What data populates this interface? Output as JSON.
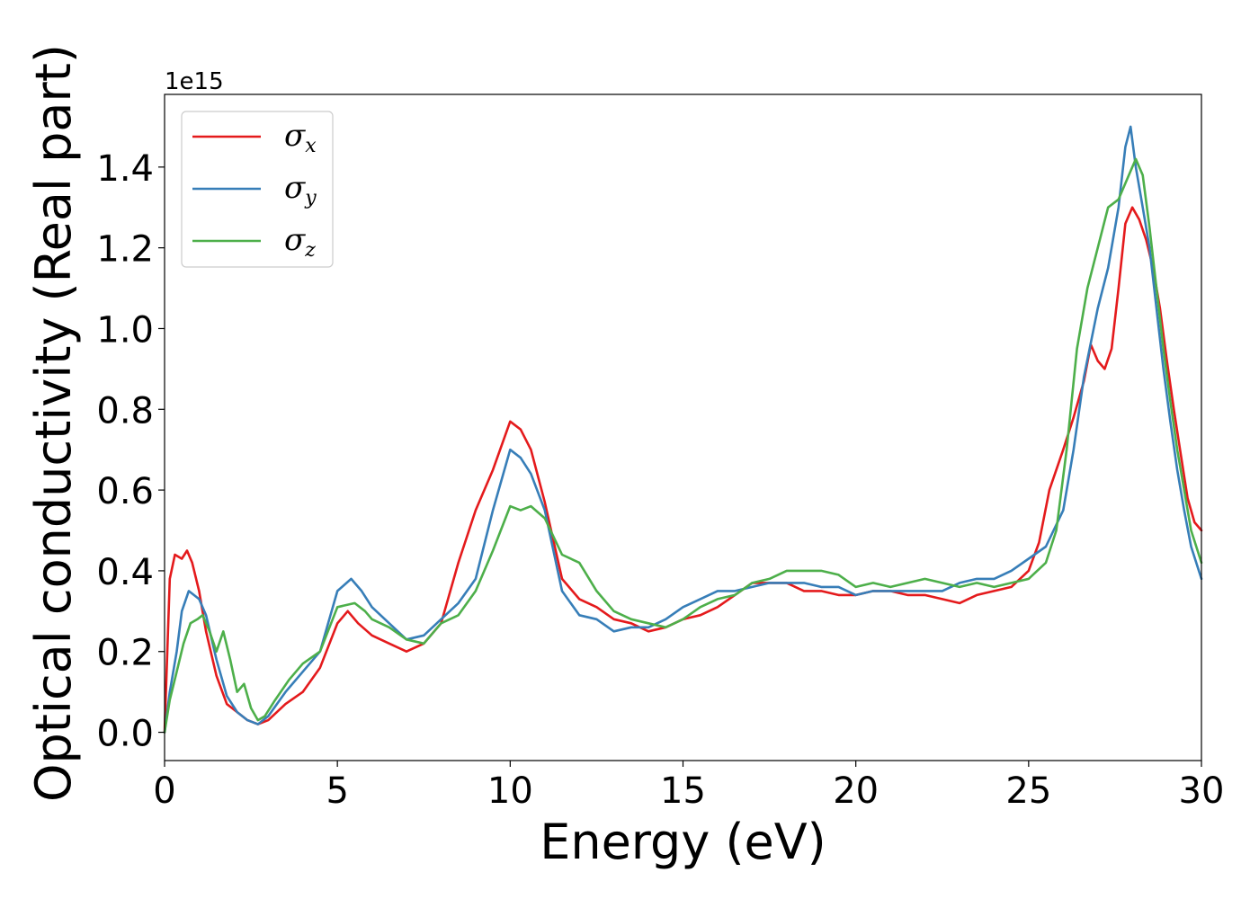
{
  "chart_data": {
    "type": "line",
    "xlabel": "Energy (eV)",
    "ylabel": "Optical conductivity (Real part)",
    "y_offset_label": "1e15",
    "xlim": [
      0,
      30
    ],
    "ylim": [
      -0.07,
      1.58
    ],
    "x_ticks": [
      0,
      5,
      10,
      15,
      20,
      25,
      30
    ],
    "x_tick_labels": [
      "0",
      "5",
      "10",
      "15",
      "20",
      "25",
      "30"
    ],
    "y_ticks": [
      0.0,
      0.2,
      0.4,
      0.6,
      0.8,
      1.0,
      1.2,
      1.4
    ],
    "y_tick_labels": [
      "0.0",
      "0.2",
      "0.4",
      "0.6",
      "0.8",
      "1.0",
      "1.2",
      "1.4"
    ],
    "grid": false,
    "legend_position": "top-left",
    "series": [
      {
        "name": "σ",
        "subscript": "x",
        "color": "#e41a1c",
        "x": [
          0,
          0.15,
          0.3,
          0.5,
          0.65,
          0.8,
          1.0,
          1.2,
          1.5,
          1.8,
          2.1,
          2.4,
          2.7,
          3.0,
          3.5,
          4.0,
          4.5,
          5.0,
          5.3,
          5.6,
          6.0,
          6.5,
          7.0,
          7.5,
          8.0,
          8.5,
          9.0,
          9.5,
          10.0,
          10.3,
          10.6,
          11.0,
          11.5,
          12.0,
          12.5,
          13.0,
          13.5,
          14.0,
          14.5,
          15.0,
          15.5,
          16.0,
          16.5,
          17.0,
          17.5,
          18.0,
          18.5,
          19.0,
          19.5,
          20.0,
          20.5,
          21.0,
          21.5,
          22.0,
          22.5,
          23.0,
          23.5,
          24.0,
          24.5,
          25.0,
          25.3,
          25.6,
          26.0,
          26.3,
          26.6,
          26.8,
          27.0,
          27.2,
          27.4,
          27.6,
          27.8,
          28.0,
          28.2,
          28.4,
          28.6,
          28.8,
          29.0,
          29.2,
          29.4,
          29.6,
          29.8,
          30.0
        ],
        "values": [
          0.0,
          0.38,
          0.44,
          0.43,
          0.45,
          0.42,
          0.35,
          0.25,
          0.14,
          0.07,
          0.05,
          0.03,
          0.02,
          0.03,
          0.07,
          0.1,
          0.16,
          0.27,
          0.3,
          0.27,
          0.24,
          0.22,
          0.2,
          0.22,
          0.27,
          0.42,
          0.55,
          0.65,
          0.77,
          0.75,
          0.7,
          0.57,
          0.38,
          0.33,
          0.31,
          0.28,
          0.27,
          0.25,
          0.26,
          0.28,
          0.29,
          0.31,
          0.34,
          0.37,
          0.37,
          0.37,
          0.35,
          0.35,
          0.34,
          0.34,
          0.35,
          0.35,
          0.34,
          0.34,
          0.33,
          0.32,
          0.34,
          0.35,
          0.36,
          0.4,
          0.47,
          0.6,
          0.7,
          0.78,
          0.87,
          0.96,
          0.92,
          0.9,
          0.95,
          1.1,
          1.26,
          1.3,
          1.27,
          1.22,
          1.15,
          1.05,
          0.92,
          0.8,
          0.69,
          0.58,
          0.52,
          0.5
        ]
      },
      {
        "name": "σ",
        "subscript": "y",
        "color": "#377eb8",
        "x": [
          0,
          0.15,
          0.35,
          0.5,
          0.7,
          0.85,
          1.0,
          1.2,
          1.5,
          1.8,
          2.1,
          2.4,
          2.7,
          3.0,
          3.5,
          4.0,
          4.5,
          5.0,
          5.4,
          5.7,
          6.0,
          6.5,
          7.0,
          7.5,
          8.0,
          8.5,
          9.0,
          9.5,
          10.0,
          10.3,
          10.6,
          11.0,
          11.5,
          12.0,
          12.5,
          13.0,
          13.5,
          14.0,
          14.5,
          15.0,
          15.5,
          16.0,
          16.5,
          17.0,
          17.5,
          18.0,
          18.5,
          19.0,
          19.5,
          20.0,
          20.5,
          21.0,
          21.5,
          22.0,
          22.5,
          23.0,
          23.5,
          24.0,
          24.5,
          25.0,
          25.5,
          26.0,
          26.3,
          26.6,
          27.0,
          27.3,
          27.6,
          27.8,
          27.95,
          28.1,
          28.3,
          28.5,
          28.7,
          28.9,
          29.1,
          29.3,
          29.5,
          29.7,
          30.0
        ],
        "values": [
          0.0,
          0.1,
          0.2,
          0.3,
          0.35,
          0.34,
          0.33,
          0.29,
          0.18,
          0.09,
          0.05,
          0.03,
          0.02,
          0.04,
          0.1,
          0.15,
          0.2,
          0.35,
          0.38,
          0.35,
          0.31,
          0.27,
          0.23,
          0.24,
          0.28,
          0.32,
          0.38,
          0.55,
          0.7,
          0.68,
          0.64,
          0.55,
          0.35,
          0.29,
          0.28,
          0.25,
          0.26,
          0.26,
          0.28,
          0.31,
          0.33,
          0.35,
          0.35,
          0.36,
          0.37,
          0.37,
          0.37,
          0.36,
          0.36,
          0.34,
          0.35,
          0.35,
          0.35,
          0.35,
          0.35,
          0.37,
          0.38,
          0.38,
          0.4,
          0.43,
          0.46,
          0.55,
          0.7,
          0.88,
          1.05,
          1.15,
          1.3,
          1.45,
          1.5,
          1.4,
          1.3,
          1.2,
          1.05,
          0.9,
          0.77,
          0.65,
          0.55,
          0.46,
          0.38
        ]
      },
      {
        "name": "σ",
        "subscript": "z",
        "color": "#4daf4a",
        "x": [
          0,
          0.15,
          0.35,
          0.55,
          0.75,
          0.95,
          1.1,
          1.3,
          1.5,
          1.7,
          1.9,
          2.1,
          2.3,
          2.5,
          2.7,
          2.9,
          3.2,
          3.6,
          4.0,
          4.5,
          5.0,
          5.5,
          5.8,
          6.0,
          6.5,
          7.0,
          7.5,
          8.0,
          8.5,
          9.0,
          9.5,
          10.0,
          10.3,
          10.6,
          11.0,
          11.5,
          12.0,
          12.5,
          13.0,
          13.5,
          14.0,
          14.5,
          15.0,
          15.5,
          16.0,
          16.5,
          17.0,
          17.5,
          18.0,
          18.5,
          19.0,
          19.5,
          20.0,
          20.5,
          21.0,
          21.5,
          22.0,
          22.5,
          23.0,
          23.5,
          24.0,
          24.5,
          25.0,
          25.5,
          25.8,
          26.1,
          26.4,
          26.7,
          27.0,
          27.3,
          27.6,
          27.9,
          28.1,
          28.3,
          28.5,
          28.7,
          28.9,
          29.1,
          29.3,
          29.5,
          29.7,
          30.0
        ],
        "values": [
          0.0,
          0.08,
          0.15,
          0.22,
          0.27,
          0.28,
          0.29,
          0.25,
          0.2,
          0.25,
          0.18,
          0.1,
          0.12,
          0.06,
          0.03,
          0.04,
          0.08,
          0.13,
          0.17,
          0.2,
          0.31,
          0.32,
          0.3,
          0.28,
          0.26,
          0.23,
          0.22,
          0.27,
          0.29,
          0.35,
          0.45,
          0.56,
          0.55,
          0.56,
          0.53,
          0.44,
          0.42,
          0.35,
          0.3,
          0.28,
          0.27,
          0.26,
          0.28,
          0.31,
          0.33,
          0.34,
          0.37,
          0.38,
          0.4,
          0.4,
          0.4,
          0.39,
          0.36,
          0.37,
          0.36,
          0.37,
          0.38,
          0.37,
          0.36,
          0.37,
          0.36,
          0.37,
          0.38,
          0.42,
          0.5,
          0.7,
          0.95,
          1.1,
          1.2,
          1.3,
          1.32,
          1.38,
          1.42,
          1.38,
          1.25,
          1.1,
          0.95,
          0.82,
          0.7,
          0.6,
          0.5,
          0.42
        ]
      }
    ]
  }
}
